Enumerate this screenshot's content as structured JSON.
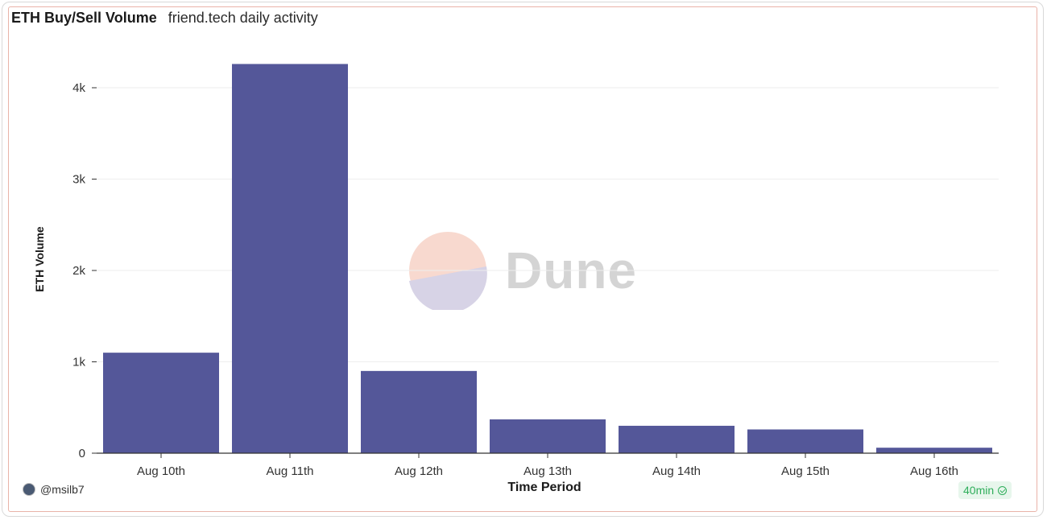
{
  "header": {
    "title": "ETH Buy/Sell Volume",
    "subtitle": "friend.tech daily activity"
  },
  "watermark": {
    "text": "Dune"
  },
  "footer": {
    "author": "@msilb7",
    "refresh_badge": "40min"
  },
  "colors": {
    "bar": "#545799",
    "grid": "#eeeeee",
    "axis": "#333333",
    "badge_text": "#2fae5b"
  },
  "chart_data": {
    "type": "bar",
    "title": "ETH Buy/Sell Volume",
    "subtitle": "friend.tech daily activity",
    "xlabel": "Time Period",
    "ylabel": "ETH Volume",
    "categories": [
      "Aug 10th",
      "Aug 11th",
      "Aug 12th",
      "Aug 13th",
      "Aug 14th",
      "Aug 15th",
      "Aug 16th"
    ],
    "values": [
      1100,
      4260,
      900,
      370,
      300,
      260,
      60
    ],
    "ylim": [
      0,
      4500
    ],
    "yticks": [
      0,
      1000,
      2000,
      3000,
      4000
    ],
    "ytick_labels": [
      "0",
      "1k",
      "2k",
      "3k",
      "4k"
    ],
    "grid": true,
    "legend": "none"
  }
}
